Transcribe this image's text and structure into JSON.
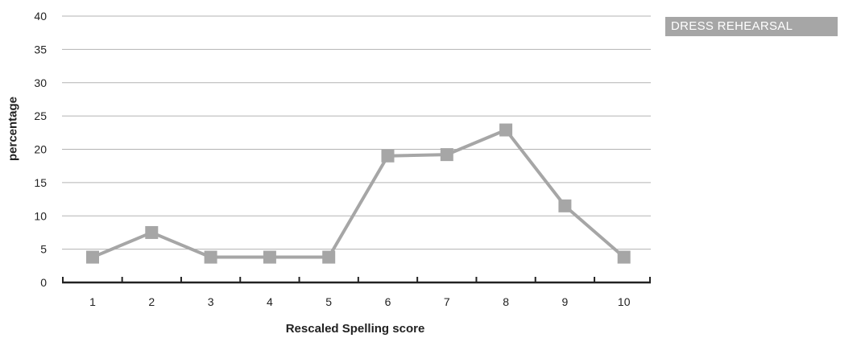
{
  "chart_data": {
    "type": "line",
    "title": "",
    "xlabel": "Rescaled Spelling score",
    "ylabel": "percentage",
    "x": [
      1,
      2,
      3,
      4,
      5,
      6,
      7,
      8,
      9,
      10
    ],
    "x_tick_labels": [
      "1",
      "2",
      "3",
      "4",
      "5",
      "6",
      "7",
      "8",
      "9",
      "10"
    ],
    "y_ticks": [
      0,
      5,
      10,
      15,
      20,
      25,
      30,
      35,
      40
    ],
    "ylim": [
      0,
      40
    ],
    "grid": "horizontal",
    "legend_placement": "top-right",
    "series": [
      {
        "name": "DRESS REHEARSAL",
        "color": "#a6a6a6",
        "marker": "square",
        "values": [
          3.8,
          7.5,
          3.8,
          3.8,
          3.8,
          19.0,
          19.2,
          22.9,
          11.5,
          3.8
        ]
      }
    ]
  }
}
